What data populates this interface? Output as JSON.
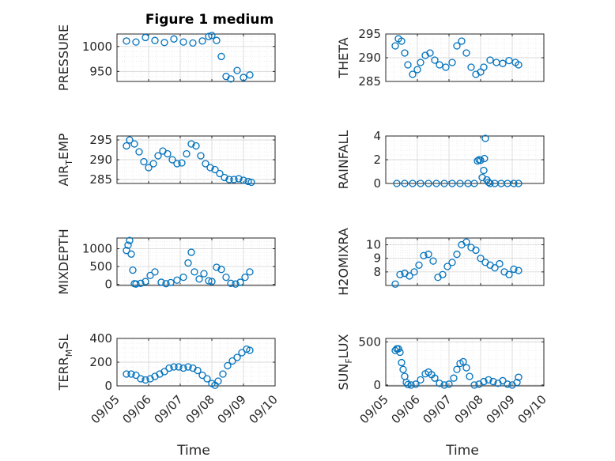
{
  "chart_data": {
    "type": "scatter",
    "title": "Figure 1 medium",
    "xlabel": "Time",
    "x_ticks": [
      "09/05",
      "09/06",
      "09/07",
      "09/08",
      "09/09",
      "09/10"
    ],
    "xlim": [
      "09/05 00:00",
      "09/10 00:00"
    ],
    "grid": true,
    "minor_grid": true,
    "marker": "circle",
    "color": "#0072bd",
    "panels": [
      {
        "id": "pressure",
        "ylabel": "PRESSURE",
        "ylabel_main": "PRESSURE",
        "ylabel_sub": "",
        "ylabel_tail": "",
        "ylim": [
          930,
          1025
        ],
        "yticks": [
          950,
          1000
        ],
        "ytick_labels": [
          "950",
          "1000"
        ],
        "t": [
          0.3,
          0.6,
          0.9,
          1.2,
          1.5,
          1.8,
          2.1,
          2.4,
          2.7,
          2.9,
          3.0,
          3.15,
          3.3,
          3.45,
          3.6,
          3.8,
          4.0,
          4.2
        ],
        "v": [
          1011,
          1009,
          1018,
          1012,
          1008,
          1015,
          1009,
          1007,
          1011,
          1020,
          1022,
          1012,
          980,
          940,
          935,
          952,
          938,
          943
        ]
      },
      {
        "id": "theta",
        "ylabel": "THETA",
        "ylabel_main": "THETA",
        "ylabel_sub": "",
        "ylabel_tail": "",
        "ylim": [
          285,
          295
        ],
        "yticks": [
          285,
          290,
          295
        ],
        "ytick_labels": [
          "285",
          "290",
          "295"
        ],
        "t": [
          0.3,
          0.4,
          0.5,
          0.6,
          0.7,
          0.85,
          1.0,
          1.1,
          1.25,
          1.4,
          1.55,
          1.7,
          1.9,
          2.1,
          2.25,
          2.4,
          2.55,
          2.7,
          2.85,
          3.0,
          3.1,
          3.3,
          3.5,
          3.7,
          3.9,
          4.1,
          4.2
        ],
        "v": [
          292.5,
          294,
          293.5,
          291,
          288.5,
          286.5,
          287.5,
          289,
          290.5,
          291,
          289.5,
          288.5,
          288,
          289,
          292.5,
          293.5,
          291,
          288,
          286.5,
          287,
          288,
          289.5,
          289,
          288.8,
          289.4,
          289,
          288.5
        ]
      },
      {
        "id": "air-temp",
        "ylabel": "AIR_TEMP",
        "ylabel_main": "AIR",
        "ylabel_sub": "T",
        "ylabel_tail": "EMP",
        "ylim": [
          284,
          296
        ],
        "yticks": [
          285,
          290,
          295
        ],
        "ytick_labels": [
          "285",
          "290",
          "295"
        ],
        "t": [
          0.3,
          0.4,
          0.55,
          0.7,
          0.85,
          1.0,
          1.15,
          1.3,
          1.45,
          1.6,
          1.75,
          1.9,
          2.05,
          2.2,
          2.35,
          2.5,
          2.65,
          2.8,
          2.95,
          3.1,
          3.25,
          3.4,
          3.55,
          3.7,
          3.85,
          4.0,
          4.15,
          4.25
        ],
        "v": [
          293.5,
          295,
          294,
          292,
          289.5,
          288,
          289,
          291,
          292.2,
          291.5,
          290,
          289,
          289.2,
          291.5,
          294,
          293.5,
          291,
          289,
          288,
          287.5,
          286.5,
          285.5,
          285,
          285,
          285.2,
          284.8,
          284.5,
          284.3
        ]
      },
      {
        "id": "rainfall",
        "ylabel": "RAINFALL",
        "ylabel_main": "RAINFALL",
        "ylabel_sub": "",
        "ylabel_tail": "",
        "ylim": [
          0,
          4
        ],
        "yticks": [
          0,
          2,
          4
        ],
        "ytick_labels": [
          "0",
          "2",
          "4"
        ],
        "t": [
          0.35,
          0.6,
          0.85,
          1.1,
          1.35,
          1.6,
          1.85,
          2.1,
          2.35,
          2.6,
          2.8,
          2.9,
          2.95,
          3.0,
          3.05,
          3.1,
          3.12,
          3.15,
          3.2,
          3.25,
          3.3,
          3.45,
          3.65,
          3.85,
          4.05,
          4.2
        ],
        "v": [
          0,
          0,
          0,
          0,
          0,
          0,
          0,
          0,
          0,
          0,
          0,
          1.9,
          2.0,
          1.95,
          0.5,
          1.1,
          2.1,
          3.8,
          0.3,
          0.1,
          0,
          0,
          0,
          0,
          0,
          0
        ]
      },
      {
        "id": "mixdepth",
        "ylabel": "MIXDEPTH",
        "ylabel_main": "MIXDEPTH",
        "ylabel_sub": "",
        "ylabel_tail": "",
        "ylim": [
          -30,
          1300
        ],
        "yticks": [
          0,
          500,
          1000
        ],
        "ytick_labels": [
          "0",
          "500",
          "1000"
        ],
        "t": [
          0.3,
          0.35,
          0.4,
          0.45,
          0.5,
          0.55,
          0.6,
          0.75,
          0.9,
          1.05,
          1.2,
          1.4,
          1.55,
          1.7,
          1.9,
          2.1,
          2.25,
          2.35,
          2.45,
          2.6,
          2.75,
          2.9,
          3.0,
          3.15,
          3.3,
          3.45,
          3.6,
          3.75,
          3.9,
          4.05,
          4.2
        ],
        "v": [
          950,
          1100,
          1230,
          850,
          400,
          20,
          10,
          30,
          80,
          250,
          350,
          60,
          20,
          50,
          120,
          200,
          600,
          900,
          350,
          150,
          300,
          100,
          80,
          480,
          420,
          200,
          30,
          10,
          60,
          200,
          350
        ]
      },
      {
        "id": "h2omixra",
        "ylabel": "H2OMIXRA",
        "ylabel_main": "H2OMIXRA",
        "ylabel_sub": "",
        "ylabel_tail": "",
        "ylim": [
          7,
          10.5
        ],
        "yticks": [
          8,
          9,
          10
        ],
        "ytick_labels": [
          "8",
          "9",
          "10"
        ],
        "t": [
          0.3,
          0.45,
          0.6,
          0.75,
          0.9,
          1.05,
          1.2,
          1.35,
          1.5,
          1.65,
          1.8,
          1.95,
          2.1,
          2.25,
          2.4,
          2.55,
          2.7,
          2.85,
          3.0,
          3.15,
          3.3,
          3.45,
          3.6,
          3.75,
          3.9,
          4.05,
          4.2
        ],
        "v": [
          7.1,
          7.8,
          7.9,
          7.7,
          8.0,
          8.5,
          9.2,
          9.3,
          8.8,
          7.6,
          7.8,
          8.4,
          8.7,
          9.3,
          10.0,
          10.2,
          9.8,
          9.6,
          9.0,
          8.7,
          8.5,
          8.3,
          8.6,
          8.0,
          7.8,
          8.2,
          8.1
        ]
      },
      {
        "id": "terr-msl",
        "ylabel": "TERR_MSL",
        "ylabel_main": "TERR",
        "ylabel_sub": "M",
        "ylabel_tail": "SL",
        "ylim": [
          0,
          400
        ],
        "yticks": [
          0,
          200,
          400
        ],
        "ytick_labels": [
          "0",
          "200",
          "400"
        ],
        "t": [
          0.3,
          0.45,
          0.6,
          0.75,
          0.9,
          1.05,
          1.2,
          1.35,
          1.5,
          1.65,
          1.8,
          1.95,
          2.1,
          2.25,
          2.4,
          2.55,
          2.7,
          2.85,
          3.0,
          3.1,
          3.2,
          3.35,
          3.5,
          3.65,
          3.8,
          3.95,
          4.1,
          4.2
        ],
        "v": [
          100,
          100,
          90,
          60,
          50,
          60,
          80,
          100,
          120,
          150,
          160,
          160,
          150,
          160,
          150,
          130,
          90,
          60,
          20,
          5,
          40,
          100,
          170,
          210,
          240,
          280,
          310,
          300
        ]
      },
      {
        "id": "sun-flux",
        "ylabel": "SUN_FLUX",
        "ylabel_main": "SUN",
        "ylabel_sub": "F",
        "ylabel_tail": "LUX",
        "ylim": [
          -10,
          540
        ],
        "yticks": [
          0,
          500
        ],
        "ytick_labels": [
          "0",
          "500"
        ],
        "t": [
          0.3,
          0.35,
          0.4,
          0.45,
          0.5,
          0.55,
          0.6,
          0.65,
          0.7,
          0.8,
          0.95,
          1.1,
          1.25,
          1.35,
          1.45,
          1.55,
          1.7,
          1.85,
          2.0,
          2.15,
          2.25,
          2.35,
          2.45,
          2.55,
          2.65,
          2.8,
          2.95,
          3.1,
          3.25,
          3.4,
          3.55,
          3.7,
          3.85,
          4.0,
          4.15,
          4.2
        ],
        "v": [
          400,
          420,
          420,
          380,
          260,
          180,
          100,
          30,
          5,
          0,
          10,
          60,
          130,
          150,
          120,
          80,
          20,
          0,
          10,
          80,
          180,
          250,
          270,
          200,
          100,
          0,
          10,
          40,
          60,
          40,
          20,
          50,
          10,
          0,
          30,
          90
        ]
      }
    ]
  }
}
